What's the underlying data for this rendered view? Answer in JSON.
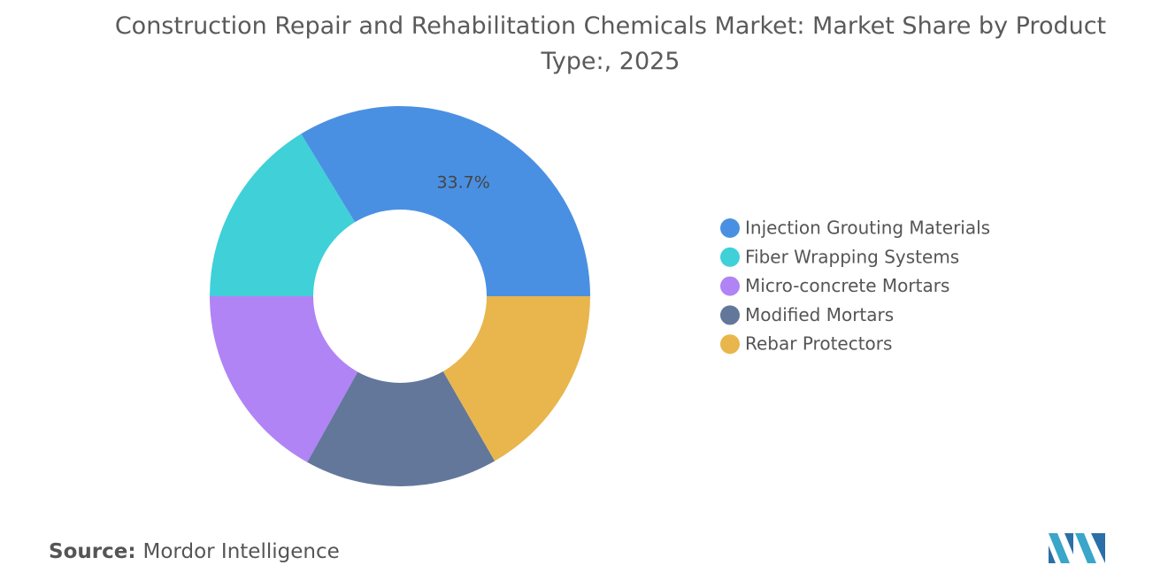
{
  "chart_data": {
    "type": "donut",
    "title": "Construction Repair and Rehabilitation Chemicals Market: Market Share by Product Type:, 2025",
    "categories": [
      "Injection Grouting Materials",
      "Fiber Wrapping Systems",
      "Micro-concrete Mortars",
      "Modified Mortars",
      "Rebar Protectors"
    ],
    "values": [
      33.7,
      16.3,
      16.9,
      16.4,
      16.7
    ],
    "value_labels": [
      "33.7%",
      null,
      null,
      null,
      null
    ],
    "colors": [
      "#4a90e2",
      "#3fd0d8",
      "#b084f5",
      "#63779a",
      "#e8b64c"
    ],
    "legend": "right"
  },
  "source": {
    "label": "Source:",
    "text": "Mordor Intelligence"
  }
}
